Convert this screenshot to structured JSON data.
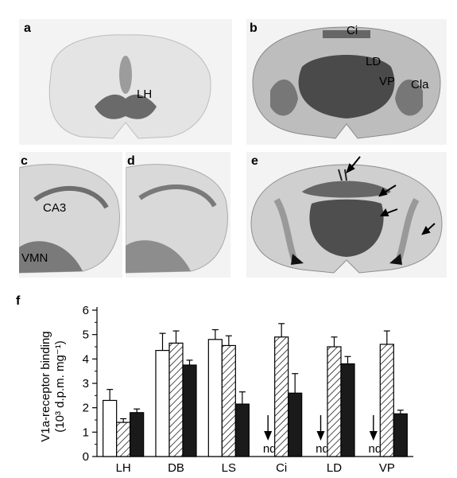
{
  "panels": {
    "a": {
      "label": "a",
      "regions": [
        "LH"
      ]
    },
    "b": {
      "label": "b",
      "regions": [
        "Ci",
        "LD",
        "VP",
        "Cla"
      ]
    },
    "c": {
      "label": "c",
      "regions": [
        "CA3",
        "VMN"
      ]
    },
    "d": {
      "label": "d",
      "regions": []
    },
    "e": {
      "label": "e",
      "regions": []
    },
    "f": {
      "label": "f"
    }
  },
  "icons": {
    "arrow": "arrow-icon"
  },
  "chart_data": {
    "type": "bar",
    "categories": [
      "LH",
      "DB",
      "LS",
      "Ci",
      "LD",
      "VP"
    ],
    "series": [
      {
        "pattern": "white",
        "values": [
          2.3,
          4.35,
          4.8,
          null,
          null,
          null
        ],
        "errors": [
          0.45,
          0.7,
          0.4,
          null,
          null,
          null
        ]
      },
      {
        "pattern": "hatched",
        "values": [
          1.4,
          4.65,
          4.55,
          4.9,
          4.5,
          4.6
        ],
        "errors": [
          0.15,
          0.5,
          0.4,
          0.55,
          0.4,
          0.55
        ]
      },
      {
        "pattern": "black",
        "values": [
          1.8,
          3.75,
          2.15,
          2.6,
          3.8,
          1.75
        ],
        "errors": [
          0.15,
          0.2,
          0.5,
          0.8,
          0.3,
          0.15
        ]
      }
    ],
    "nd_label": "nd",
    "ylabel_line1": "V1a-receptor binding",
    "ylabel_line2": "(10³ d.p.m. mg⁻¹)",
    "ylim": [
      0,
      6
    ],
    "yticks": [
      "0",
      "1",
      "2",
      "3",
      "4",
      "5",
      "6"
    ]
  }
}
